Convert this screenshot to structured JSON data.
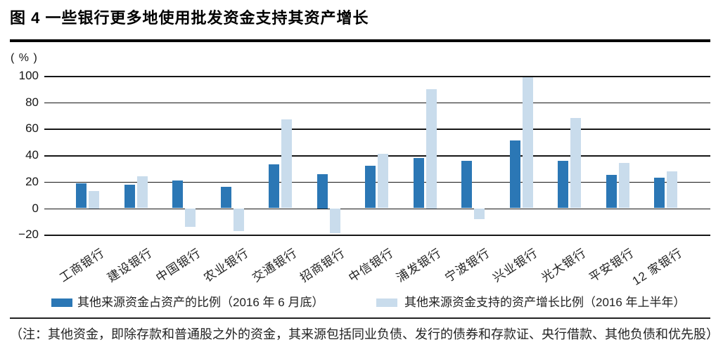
{
  "figure": {
    "title": "图 4  一些银行更多地使用批发资金支持其资产增长",
    "unit_label": "( % )",
    "footnote": "（注：其他资金，即除存款和普通股之外的资金，其来源包括同业负债、发行的债券和存款证、央行借款、其他负债和优先股）"
  },
  "legend": {
    "items": [
      {
        "label": "其他来源资金占资产的比例（2016 年 6 月底）",
        "color": "#2b77b5"
      },
      {
        "label": "其他来源资金支持的资产增长比例（2016 年上半年）",
        "color": "#c9dcec"
      }
    ]
  },
  "chart_data": {
    "type": "bar",
    "title": "图 4  一些银行更多地使用批发资金支持其资产增长",
    "xlabel": "",
    "ylabel": "( % )",
    "categories": [
      "工商银行",
      "建设银行",
      "中国银行",
      "农业银行",
      "交通银行",
      "招商银行",
      "中信银行",
      "浦发银行",
      "宁波银行",
      "兴业银行",
      "光大银行",
      "平安银行",
      "12 家银行"
    ],
    "series": [
      {
        "name": "其他来源资金占资产的比例（2016 年 6 月底）",
        "color": "#2b77b5",
        "values": [
          19,
          18,
          21,
          16,
          33,
          26,
          32,
          38,
          36,
          51,
          36,
          25,
          23
        ]
      },
      {
        "name": "其他来源资金支持的资产增长比例（2016 年上半年）",
        "color": "#c9dcec",
        "values": [
          13,
          24,
          -14,
          -17,
          67,
          -19,
          41,
          90,
          -8,
          99,
          68,
          34,
          28
        ]
      }
    ],
    "yticks": [
      100,
      80,
      60,
      40,
      20,
      0,
      -20
    ],
    "ylim": [
      -20,
      100
    ],
    "grid": true,
    "legend_position": "bottom"
  },
  "colors": {
    "grid": "#161616",
    "rule": "#000000"
  }
}
